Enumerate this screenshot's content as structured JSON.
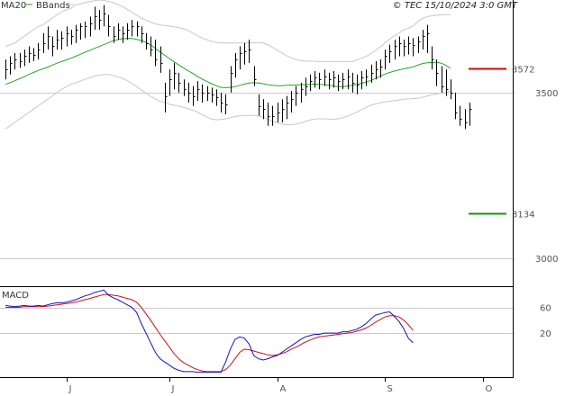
{
  "header": {
    "ma_label": "MA20",
    "bbands_label": "BBands",
    "copyright": "© TEC 15/10/2024 3:0 GMT"
  },
  "colors": {
    "ma": "#22aa22",
    "bbands": "#c8c8c8",
    "bars": "#000000",
    "resistance": "#dd0000",
    "support": "#119911",
    "macd": "#1111cc",
    "signal": "#cc1111",
    "grid": "#cccccc"
  },
  "chart_data": [
    {
      "type": "ohlc",
      "title": "",
      "ylim": [
        2915,
        3780
      ],
      "y_ticks": [
        3500,
        3000
      ],
      "y_tick_labels": [
        "3500",
        "3000"
      ],
      "x_month_labels": [
        {
          "label": "J",
          "index": 13
        },
        {
          "label": "J",
          "index": 35
        },
        {
          "label": "A",
          "index": 58
        },
        {
          "label": "S",
          "index": 81
        },
        {
          "label": "O",
          "index": 102
        }
      ],
      "levels": [
        {
          "name": "resistance",
          "value": 3572,
          "label": "3572"
        },
        {
          "name": "support",
          "value": 3134,
          "label": "3134"
        }
      ],
      "bars": [
        {
          "h": 3600,
          "l": 3540,
          "c": 3570
        },
        {
          "h": 3610,
          "l": 3555,
          "c": 3590
        },
        {
          "h": 3620,
          "l": 3570,
          "c": 3600
        },
        {
          "h": 3620,
          "l": 3575,
          "c": 3595
        },
        {
          "h": 3630,
          "l": 3580,
          "c": 3610
        },
        {
          "h": 3640,
          "l": 3590,
          "c": 3620
        },
        {
          "h": 3635,
          "l": 3595,
          "c": 3615
        },
        {
          "h": 3650,
          "l": 3600,
          "c": 3630
        },
        {
          "h": 3680,
          "l": 3620,
          "c": 3650
        },
        {
          "h": 3700,
          "l": 3630,
          "c": 3670
        },
        {
          "h": 3670,
          "l": 3610,
          "c": 3640
        },
        {
          "h": 3690,
          "l": 3630,
          "c": 3660
        },
        {
          "h": 3685,
          "l": 3630,
          "c": 3665
        },
        {
          "h": 3700,
          "l": 3640,
          "c": 3680
        },
        {
          "h": 3690,
          "l": 3645,
          "c": 3670
        },
        {
          "h": 3705,
          "l": 3650,
          "c": 3690
        },
        {
          "h": 3710,
          "l": 3660,
          "c": 3700
        },
        {
          "h": 3715,
          "l": 3665,
          "c": 3700
        },
        {
          "h": 3730,
          "l": 3670,
          "c": 3710
        },
        {
          "h": 3760,
          "l": 3690,
          "c": 3730
        },
        {
          "h": 3750,
          "l": 3690,
          "c": 3720
        },
        {
          "h": 3765,
          "l": 3700,
          "c": 3740
        },
        {
          "h": 3735,
          "l": 3670,
          "c": 3700
        },
        {
          "h": 3700,
          "l": 3650,
          "c": 3670
        },
        {
          "h": 3710,
          "l": 3660,
          "c": 3690
        },
        {
          "h": 3700,
          "l": 3650,
          "c": 3680
        },
        {
          "h": 3710,
          "l": 3660,
          "c": 3690
        },
        {
          "h": 3720,
          "l": 3670,
          "c": 3700
        },
        {
          "h": 3715,
          "l": 3670,
          "c": 3700
        },
        {
          "h": 3700,
          "l": 3650,
          "c": 3680
        },
        {
          "h": 3680,
          "l": 3630,
          "c": 3650
        },
        {
          "h": 3670,
          "l": 3610,
          "c": 3630
        },
        {
          "h": 3660,
          "l": 3580,
          "c": 3600
        },
        {
          "h": 3640,
          "l": 3560,
          "c": 3590
        },
        {
          "h": 3530,
          "l": 3440,
          "c": 3490
        },
        {
          "h": 3570,
          "l": 3490,
          "c": 3540
        },
        {
          "h": 3590,
          "l": 3510,
          "c": 3560
        },
        {
          "h": 3560,
          "l": 3500,
          "c": 3530
        },
        {
          "h": 3540,
          "l": 3490,
          "c": 3510
        },
        {
          "h": 3530,
          "l": 3470,
          "c": 3500
        },
        {
          "h": 3520,
          "l": 3460,
          "c": 3490
        },
        {
          "h": 3535,
          "l": 3475,
          "c": 3510
        },
        {
          "h": 3525,
          "l": 3470,
          "c": 3500
        },
        {
          "h": 3520,
          "l": 3475,
          "c": 3500
        },
        {
          "h": 3515,
          "l": 3470,
          "c": 3495
        },
        {
          "h": 3510,
          "l": 3460,
          "c": 3485
        },
        {
          "h": 3500,
          "l": 3440,
          "c": 3470
        },
        {
          "h": 3495,
          "l": 3435,
          "c": 3465
        },
        {
          "h": 3580,
          "l": 3500,
          "c": 3560
        },
        {
          "h": 3620,
          "l": 3545,
          "c": 3600
        },
        {
          "h": 3640,
          "l": 3570,
          "c": 3620
        },
        {
          "h": 3650,
          "l": 3585,
          "c": 3625
        },
        {
          "h": 3660,
          "l": 3590,
          "c": 3630
        },
        {
          "h": 3580,
          "l": 3520,
          "c": 3540
        },
        {
          "h": 3495,
          "l": 3430,
          "c": 3460
        },
        {
          "h": 3480,
          "l": 3420,
          "c": 3450
        },
        {
          "h": 3470,
          "l": 3400,
          "c": 3430
        },
        {
          "h": 3460,
          "l": 3400,
          "c": 3430
        },
        {
          "h": 3470,
          "l": 3410,
          "c": 3440
        },
        {
          "h": 3480,
          "l": 3410,
          "c": 3450
        },
        {
          "h": 3490,
          "l": 3420,
          "c": 3470
        },
        {
          "h": 3505,
          "l": 3440,
          "c": 3480
        },
        {
          "h": 3520,
          "l": 3460,
          "c": 3500
        },
        {
          "h": 3530,
          "l": 3470,
          "c": 3510
        },
        {
          "h": 3545,
          "l": 3490,
          "c": 3520
        },
        {
          "h": 3555,
          "l": 3505,
          "c": 3535
        },
        {
          "h": 3565,
          "l": 3515,
          "c": 3545
        },
        {
          "h": 3560,
          "l": 3510,
          "c": 3540
        },
        {
          "h": 3570,
          "l": 3520,
          "c": 3550
        },
        {
          "h": 3560,
          "l": 3510,
          "c": 3540
        },
        {
          "h": 3565,
          "l": 3515,
          "c": 3545
        },
        {
          "h": 3555,
          "l": 3505,
          "c": 3535
        },
        {
          "h": 3560,
          "l": 3510,
          "c": 3540
        },
        {
          "h": 3570,
          "l": 3510,
          "c": 3550
        },
        {
          "h": 3560,
          "l": 3500,
          "c": 3530
        },
        {
          "h": 3555,
          "l": 3495,
          "c": 3525
        },
        {
          "h": 3565,
          "l": 3510,
          "c": 3545
        },
        {
          "h": 3570,
          "l": 3520,
          "c": 3550
        },
        {
          "h": 3585,
          "l": 3530,
          "c": 3560
        },
        {
          "h": 3595,
          "l": 3540,
          "c": 3570
        },
        {
          "h": 3600,
          "l": 3545,
          "c": 3580
        },
        {
          "h": 3630,
          "l": 3570,
          "c": 3610
        },
        {
          "h": 3645,
          "l": 3590,
          "c": 3625
        },
        {
          "h": 3660,
          "l": 3600,
          "c": 3640
        },
        {
          "h": 3670,
          "l": 3610,
          "c": 3650
        },
        {
          "h": 3660,
          "l": 3610,
          "c": 3640
        },
        {
          "h": 3670,
          "l": 3615,
          "c": 3650
        },
        {
          "h": 3665,
          "l": 3610,
          "c": 3645
        },
        {
          "h": 3670,
          "l": 3620,
          "c": 3655
        },
        {
          "h": 3690,
          "l": 3630,
          "c": 3670
        },
        {
          "h": 3705,
          "l": 3620,
          "c": 3680
        },
        {
          "h": 3640,
          "l": 3570,
          "c": 3600
        },
        {
          "h": 3600,
          "l": 3520,
          "c": 3560
        },
        {
          "h": 3580,
          "l": 3500,
          "c": 3520
        },
        {
          "h": 3570,
          "l": 3490,
          "c": 3510
        },
        {
          "h": 3540,
          "l": 3480,
          "c": 3500
        },
        {
          "h": 3500,
          "l": 3420,
          "c": 3440
        },
        {
          "h": 3460,
          "l": 3400,
          "c": 3420
        },
        {
          "h": 3450,
          "l": 3390,
          "c": 3410
        },
        {
          "h": 3470,
          "l": 3400,
          "c": 3450
        }
      ],
      "ma20": [
        3525,
        3530,
        3536,
        3542,
        3548,
        3555,
        3561,
        3567,
        3572,
        3577,
        3583,
        3589,
        3594,
        3599,
        3604,
        3610,
        3616,
        3622,
        3628,
        3634,
        3639,
        3645,
        3651,
        3657,
        3660,
        3663,
        3664,
        3664,
        3661,
        3658,
        3652,
        3644,
        3634,
        3623,
        3613,
        3603,
        3593,
        3584,
        3575,
        3566,
        3558,
        3549,
        3541,
        3534,
        3527,
        3521,
        3516,
        3515,
        3516,
        3518,
        3522,
        3526,
        3529,
        3530,
        3529,
        3527,
        3524,
        3522,
        3521,
        3521,
        3522,
        3523,
        3523,
        3524,
        3524,
        3525,
        3526,
        3525,
        3524,
        3523,
        3520,
        3518,
        3518,
        3520,
        3522,
        3525,
        3528,
        3532,
        3537,
        3543,
        3550,
        3556,
        3561,
        3565,
        3569,
        3572,
        3575,
        3578,
        3583,
        3588,
        3590,
        3591,
        3592,
        3589,
        3583,
        3573
      ],
      "bb_upper": [
        3640,
        3645,
        3650,
        3660,
        3670,
        3680,
        3690,
        3700,
        3705,
        3715,
        3725,
        3735,
        3745,
        3750,
        3755,
        3765,
        3768,
        3772,
        3775,
        3778,
        3780,
        3779,
        3776,
        3772,
        3766,
        3760,
        3752,
        3743,
        3734,
        3726,
        3719,
        3713,
        3708,
        3705,
        3703,
        3701,
        3699,
        3697,
        3693,
        3688,
        3680,
        3672,
        3665,
        3660,
        3655,
        3652,
        3650,
        3650,
        3650,
        3650,
        3650,
        3650,
        3650,
        3651,
        3651,
        3650,
        3645,
        3637,
        3628,
        3620,
        3612,
        3605,
        3600,
        3597,
        3595,
        3595,
        3595,
        3594,
        3594,
        3594,
        3594,
        3594,
        3594,
        3594,
        3594,
        3598,
        3604,
        3610,
        3618,
        3628,
        3638,
        3650,
        3662,
        3672,
        3680,
        3690,
        3695,
        3702,
        3715,
        3724,
        3730,
        3732,
        3734,
        3735,
        3736,
        3736
      ],
      "bb_lower": [
        3390,
        3400,
        3410,
        3420,
        3430,
        3440,
        3450,
        3460,
        3470,
        3480,
        3490,
        3500,
        3510,
        3518,
        3525,
        3530,
        3535,
        3540,
        3545,
        3550,
        3553,
        3555,
        3555,
        3552,
        3548,
        3543,
        3536,
        3528,
        3518,
        3508,
        3498,
        3489,
        3481,
        3474,
        3469,
        3465,
        3462,
        3459,
        3456,
        3452,
        3447,
        3441,
        3433,
        3426,
        3420,
        3418,
        3419,
        3421,
        3424,
        3428,
        3430,
        3431,
        3431,
        3431,
        3429,
        3426,
        3420,
        3414,
        3409,
        3405,
        3403,
        3403,
        3405,
        3408,
        3413,
        3417,
        3420,
        3421,
        3421,
        3420,
        3419,
        3421,
        3424,
        3429,
        3435,
        3441,
        3448,
        3455,
        3462,
        3466,
        3469,
        3472,
        3474,
        3476,
        3478,
        3480,
        3481,
        3482,
        3483,
        3486,
        3490,
        3493,
        3496,
        3499,
        3500,
        3504
      ]
    },
    {
      "type": "line",
      "title": "MACD",
      "ylim": [
        -50,
        93
      ],
      "y_ticks": [
        60,
        20
      ],
      "y_tick_labels": [
        "60",
        "20"
      ],
      "series": [
        {
          "name": "",
          "values": [
            63,
            62,
            61,
            62,
            63,
            62,
            62,
            63,
            62,
            64,
            66,
            67,
            67,
            68,
            70,
            72,
            75,
            78,
            80,
            83,
            85,
            87,
            79,
            75,
            72,
            68,
            64,
            60,
            52,
            35,
            20,
            5,
            -10,
            -20,
            -25,
            -30,
            -35,
            -38,
            -40,
            -40,
            -40,
            -41,
            -41,
            -41,
            -41,
            -41,
            -41,
            -25,
            -5,
            10,
            14,
            12,
            3,
            -15,
            -20,
            -22,
            -20,
            -17,
            -15,
            -10,
            -5,
            0,
            5,
            10,
            14,
            16,
            18,
            18,
            20,
            20,
            20,
            20,
            22,
            22,
            24,
            26,
            30,
            35,
            42,
            48,
            50,
            52,
            53,
            46,
            38,
            27,
            12,
            5
          ]
        },
        {
          "name": "",
          "values": [
            60,
            60,
            60,
            60,
            61,
            61,
            61,
            61,
            61,
            62,
            63,
            64,
            65,
            66,
            67,
            68,
            70,
            72,
            74,
            76,
            78,
            80,
            80,
            79,
            78,
            76,
            74,
            72,
            68,
            60,
            50,
            40,
            29,
            18,
            8,
            -2,
            -12,
            -20,
            -26,
            -30,
            -34,
            -37,
            -39,
            -40,
            -40,
            -40,
            -40,
            -37,
            -30,
            -20,
            -10,
            -5,
            -6,
            -8,
            -10,
            -12,
            -14,
            -15,
            -14,
            -12,
            -9,
            -5,
            -2,
            2,
            6,
            9,
            12,
            14,
            15,
            16,
            17,
            18,
            19,
            20,
            21,
            23,
            25,
            28,
            32,
            37,
            41,
            45,
            47,
            47,
            45,
            40,
            33,
            24
          ]
        }
      ]
    }
  ]
}
